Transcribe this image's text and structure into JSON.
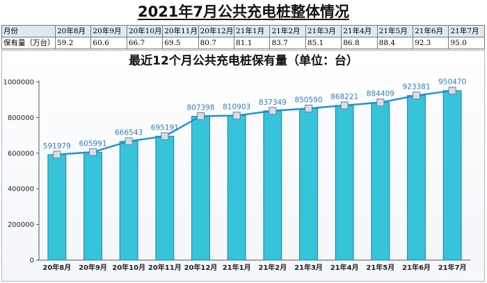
{
  "page_title": "2021年7月公共充电桩整体情况",
  "summary_table": {
    "row_header_label": "月份",
    "row_value_label": "保有量（万台）",
    "months": [
      "20年8月",
      "20年9月",
      "20年10月",
      "20年11月",
      "20年12月",
      "21年1月",
      "21年2月",
      "21年3月",
      "21年4月",
      "21年5月",
      "21年6月",
      "21年7月"
    ],
    "values": [
      "59.2",
      "60.6",
      "66.7",
      "69.5",
      "80.7",
      "81.1",
      "83.7",
      "85.1",
      "86.8",
      "88.4",
      "92.3",
      "95.0"
    ]
  },
  "watermark": "@汽车能源",
  "colors": {
    "bar_fill": "#35c4d9",
    "bar_stroke": "#1f7fa6",
    "line": "#1e93d2",
    "data_label": "#2f7ec1",
    "marker": "#d8dde6"
  },
  "chart_data": {
    "type": "bar",
    "title": "最近12个月公共充电桩保有量（单位：台）",
    "xlabel": "",
    "ylabel": "",
    "categories": [
      "20年8月",
      "20年9月",
      "20年10月",
      "20年11月",
      "20年12月",
      "21年1月",
      "21年2月",
      "21年3月",
      "21年4月",
      "21年5月",
      "21年6月",
      "21年7月"
    ],
    "values": [
      591979,
      605991,
      666543,
      695191,
      807398,
      810903,
      837349,
      850590,
      868221,
      884409,
      923381,
      950470
    ],
    "ylim": [
      0,
      1000000
    ],
    "yticks": [
      0,
      200000,
      400000,
      600000,
      800000,
      1000000
    ],
    "ytick_labels": [
      "0",
      "200000",
      "400000",
      "600000",
      "800000",
      "1000000"
    ],
    "overlay_line": true,
    "data_labels": true,
    "grid": false,
    "legend": "none"
  }
}
